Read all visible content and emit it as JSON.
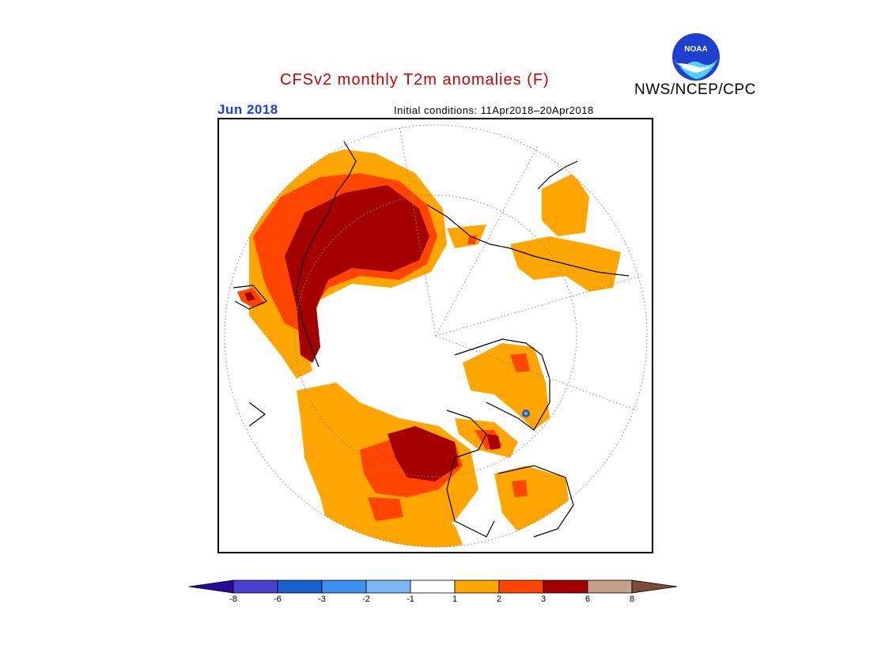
{
  "header": {
    "title": "CFSv2 monthly T2m anomalies (F)",
    "agency": "NWS/NCEP/CPC",
    "logo_text": "NOAA",
    "month": "Jun 2018",
    "initial_conditions": "Initial conditions: 11Apr2018–20Apr2018"
  },
  "legend": {
    "bins": [
      {
        "label": "-8",
        "color": "#2a0a9a"
      },
      {
        "label": "-6",
        "color": "#4b3fd0"
      },
      {
        "label": "-3",
        "color": "#1a5fd0"
      },
      {
        "label": "-2",
        "color": "#3f8ff0"
      },
      {
        "label": "-1",
        "color": "#7ab8f4"
      },
      {
        "label": "1",
        "color": "#ffffff"
      },
      {
        "label": "2",
        "color": "#ffa500"
      },
      {
        "label": "3",
        "color": "#ff4500"
      },
      {
        "label": "6",
        "color": "#a50000"
      },
      {
        "label": "8",
        "color": "#c7a08c"
      },
      {
        "label": "",
        "color": "#7a4a3a"
      }
    ]
  },
  "colors": {
    "warm1": "#ffa500",
    "warm2": "#ff4500",
    "warm3": "#a50000",
    "cool": "#7ab8f4"
  }
}
